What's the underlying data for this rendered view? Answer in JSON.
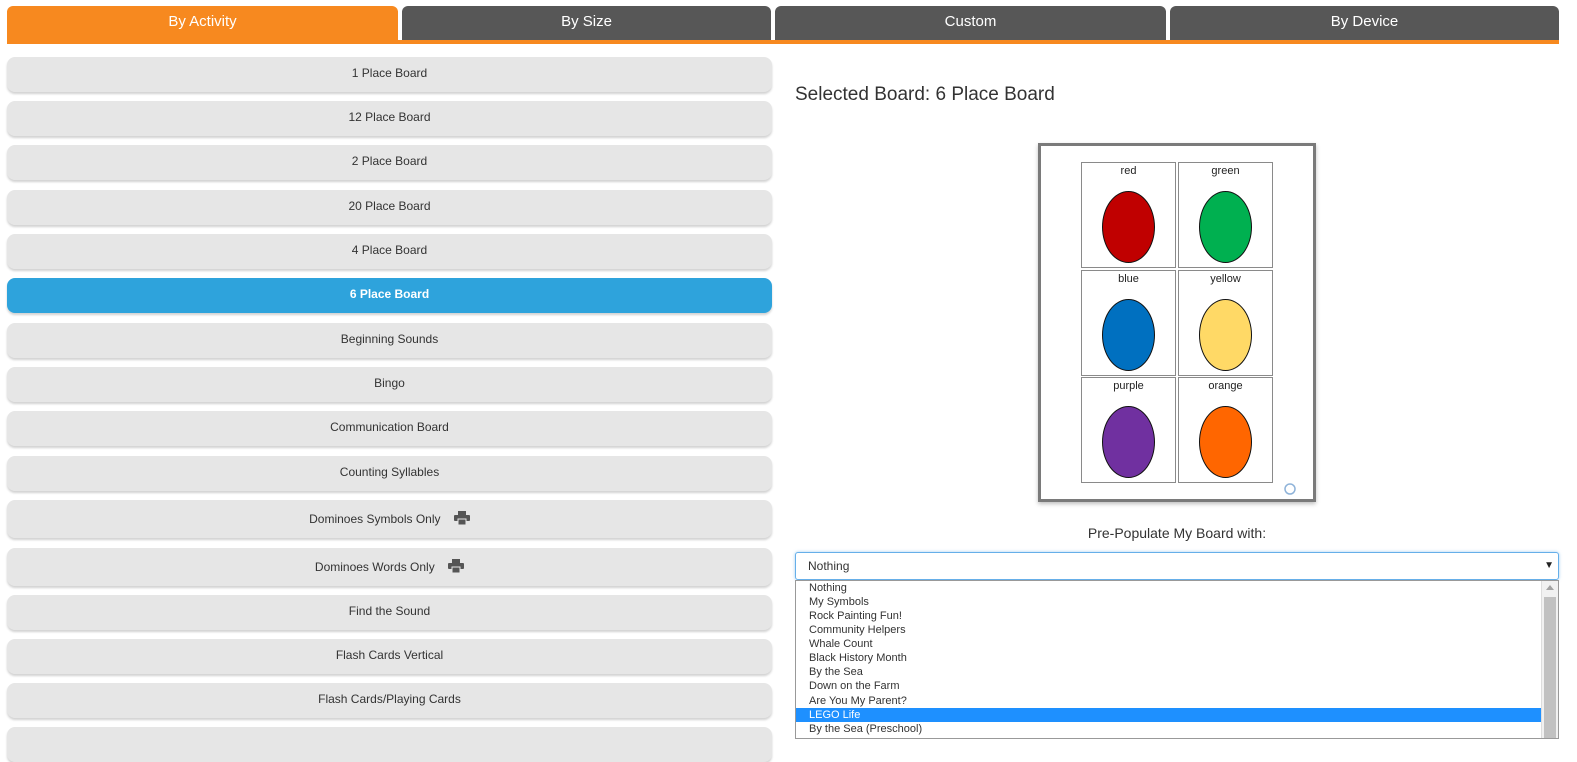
{
  "tabs": [
    {
      "label": "By Activity",
      "active": true
    },
    {
      "label": "By Size",
      "active": false
    },
    {
      "label": "Custom",
      "active": false
    },
    {
      "label": "By Device",
      "active": false
    }
  ],
  "boards": [
    {
      "label": "1 Place Board"
    },
    {
      "label": "12 Place Board"
    },
    {
      "label": "2 Place Board"
    },
    {
      "label": "20 Place Board"
    },
    {
      "label": "4 Place Board"
    },
    {
      "label": "6 Place Board",
      "selected": true
    },
    {
      "label": "Beginning Sounds"
    },
    {
      "label": "Bingo"
    },
    {
      "label": "Communication Board"
    },
    {
      "label": "Counting Syllables"
    },
    {
      "label": "Dominoes Symbols Only",
      "icon": "printer-icon"
    },
    {
      "label": "Dominoes Words Only",
      "icon": "printer-icon"
    },
    {
      "label": "Find the Sound"
    },
    {
      "label": "Flash Cards Vertical"
    },
    {
      "label": "Flash Cards/Playing Cards"
    }
  ],
  "selected_board": {
    "title": "Selected Board: 6 Place Board"
  },
  "preview": {
    "cells": [
      {
        "label": "red",
        "color": "#c00000"
      },
      {
        "label": "green",
        "color": "#00b050"
      },
      {
        "label": "blue",
        "color": "#0070c0"
      },
      {
        "label": "yellow",
        "color": "#ffd966"
      },
      {
        "label": "purple",
        "color": "#7030a0"
      },
      {
        "label": "orange",
        "color": "#ff6600"
      }
    ]
  },
  "prepopulate": {
    "label": "Pre-Populate My Board with:",
    "selected_value": "Nothing",
    "options": [
      {
        "label": "Nothing"
      },
      {
        "label": "My Symbols"
      },
      {
        "label": "Rock Painting Fun!"
      },
      {
        "label": "Community Helpers"
      },
      {
        "label": "Whale Count"
      },
      {
        "label": "Black History Month"
      },
      {
        "label": "By the Sea"
      },
      {
        "label": "Down on the Farm"
      },
      {
        "label": "Are You My Parent?"
      },
      {
        "label": "LEGO Life",
        "highlighted": true
      },
      {
        "label": "By the Sea (Preschool)"
      }
    ]
  },
  "colors": {
    "accent_orange": "#f7891f",
    "tab_dark": "#575757",
    "selected_blue": "#2ea3dc",
    "option_highlight": "#1e90ff"
  }
}
